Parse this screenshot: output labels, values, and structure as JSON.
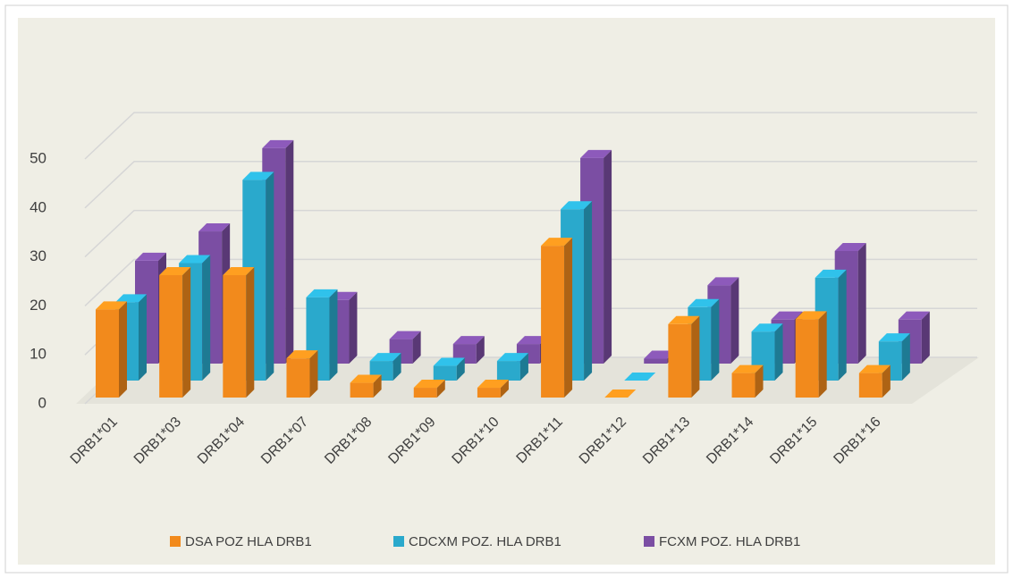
{
  "chart_data": {
    "type": "bar3d",
    "categories": [
      "DRB1*01",
      "DRB1*03",
      "DRB1*04",
      "DRB1*07",
      "DRB1*08",
      "DRB1*09",
      "DRB1*10",
      "DRB1*11",
      "DRB1*12",
      "DRB1*13",
      "DRB1*14",
      "DRB1*15",
      "DRB1*16"
    ],
    "series": [
      {
        "name": "DSA POZ HLA DRB1",
        "color": "#f28a1c",
        "values": [
          18,
          25,
          25,
          8,
          3,
          2,
          2,
          31,
          0,
          15,
          5,
          16,
          5
        ]
      },
      {
        "name": "CDCXM POZ. HLA DRB1",
        "color": "#2aa9cc",
        "values": [
          16,
          24,
          41,
          17,
          4,
          3,
          4,
          35,
          0,
          15,
          10,
          21,
          8
        ]
      },
      {
        "name": "FCXM POZ. HLA DRB1",
        "color": "#7b4ea3",
        "values": [
          21,
          27,
          44,
          13,
          5,
          4,
          4,
          42,
          1,
          16,
          9,
          23,
          9
        ]
      }
    ],
    "ylim": [
      0,
      50
    ],
    "yticks": [
      0,
      10,
      20,
      30,
      40,
      50
    ],
    "grid": true,
    "legend": "bottom"
  }
}
